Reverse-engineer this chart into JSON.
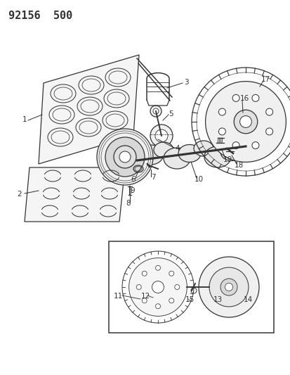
{
  "title": "92156  500",
  "bg_color": "#ffffff",
  "line_color": "#333333",
  "title_fontsize": 11,
  "label_fontsize": 7.5,
  "figsize": [
    4.14,
    5.33
  ],
  "dpi": 100
}
